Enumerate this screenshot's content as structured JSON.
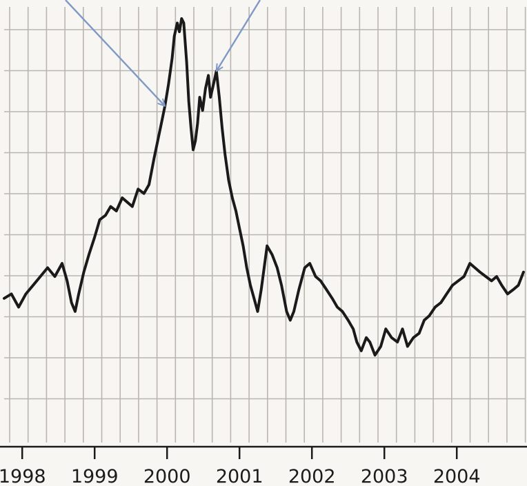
{
  "colors": {
    "background": "#f7f6f2",
    "grid": "#b9b6b0",
    "series": "#1a1a1a",
    "axis": "#1a1a1a",
    "annotation_arrow": "#7f98c5"
  },
  "chart_data": {
    "type": "line",
    "title": "",
    "xlabel": "",
    "ylabel": "",
    "grid": true,
    "legend": "none",
    "x_tick_labels": [
      "1998",
      "1999",
      "2000",
      "2001",
      "2002",
      "2003",
      "2004"
    ],
    "x_ticks": [
      1998.0,
      1999.0,
      2000.0,
      2001.0,
      2002.0,
      2003.0,
      2004.0
    ],
    "xlim": [
      1997.75,
      2004.95
    ],
    "ylim": [
      0,
      100
    ],
    "y_tick_labels": [],
    "annotations": [
      {
        "type": "arrow",
        "points_to": [
          1999.97,
          77
        ]
      },
      {
        "type": "arrow",
        "points_to": [
          2000.68,
          85
        ]
      }
    ],
    "series": [
      {
        "x": [
          1997.75,
          1997.85,
          1997.95,
          1998.05,
          1998.15,
          1998.25,
          1998.35,
          1998.45,
          1998.55,
          1998.62,
          1998.68,
          1998.73,
          1998.78,
          1998.85,
          1998.92,
          1999.0,
          1999.07,
          1999.15,
          1999.22,
          1999.3,
          1999.38,
          1999.45,
          1999.52,
          1999.6,
          1999.68,
          1999.75,
          1999.82,
          1999.87,
          1999.92,
          1999.97,
          2000.02,
          2000.07,
          2000.1,
          2000.14,
          2000.17,
          2000.2,
          2000.23,
          2000.27,
          2000.3,
          2000.33,
          2000.36,
          2000.39,
          2000.42,
          2000.45,
          2000.49,
          2000.53,
          2000.57,
          2000.6,
          2000.64,
          2000.68,
          2000.72,
          2000.76,
          2000.8,
          2000.85,
          2000.9,
          2000.95,
          2001.0,
          2001.05,
          2001.1,
          2001.15,
          2001.2,
          2001.25,
          2001.3,
          2001.38,
          2001.45,
          2001.52,
          2001.58,
          2001.65,
          2001.7,
          2001.75,
          2001.82,
          2001.9,
          2001.97,
          2002.05,
          2002.12,
          2002.2,
          2002.28,
          2002.35,
          2002.42,
          2002.5,
          2002.57,
          2002.62,
          2002.68,
          2002.75,
          2002.8,
          2002.87,
          2002.95,
          2003.02,
          2003.1,
          2003.18,
          2003.25,
          2003.32,
          2003.4,
          2003.48,
          2003.55,
          2003.62,
          2003.7,
          2003.78,
          2003.86,
          2003.94,
          2004.02,
          2004.1,
          2004.18,
          2004.25,
          2004.32,
          2004.4,
          2004.48,
          2004.55,
          2004.62,
          2004.7,
          2004.78,
          2004.85,
          2004.92
        ],
        "y": [
          33,
          34,
          31,
          34,
          36,
          38,
          40,
          38,
          41,
          37,
          32,
          30,
          34,
          39,
          43,
          47,
          51,
          52,
          54,
          53,
          56,
          55,
          54,
          58,
          57,
          59,
          65,
          69,
          73,
          77,
          82,
          88,
          93,
          96,
          94,
          97,
          96,
          87,
          78,
          72,
          67,
          69,
          73,
          79,
          76,
          81,
          84,
          79,
          82,
          85,
          79,
          72,
          66,
          60,
          56,
          53,
          49,
          45,
          40,
          36,
          33,
          30,
          35,
          45,
          43,
          40,
          36,
          30,
          28,
          30,
          35,
          40,
          41,
          38,
          37,
          35,
          33,
          31,
          30,
          28,
          26,
          23,
          21,
          24,
          23,
          20,
          22,
          26,
          24,
          23,
          26,
          22,
          24,
          25,
          28,
          29,
          31,
          32,
          34,
          36,
          37,
          38,
          41,
          40,
          39,
          38,
          37,
          38,
          36,
          34,
          35,
          36,
          39
        ]
      }
    ]
  }
}
